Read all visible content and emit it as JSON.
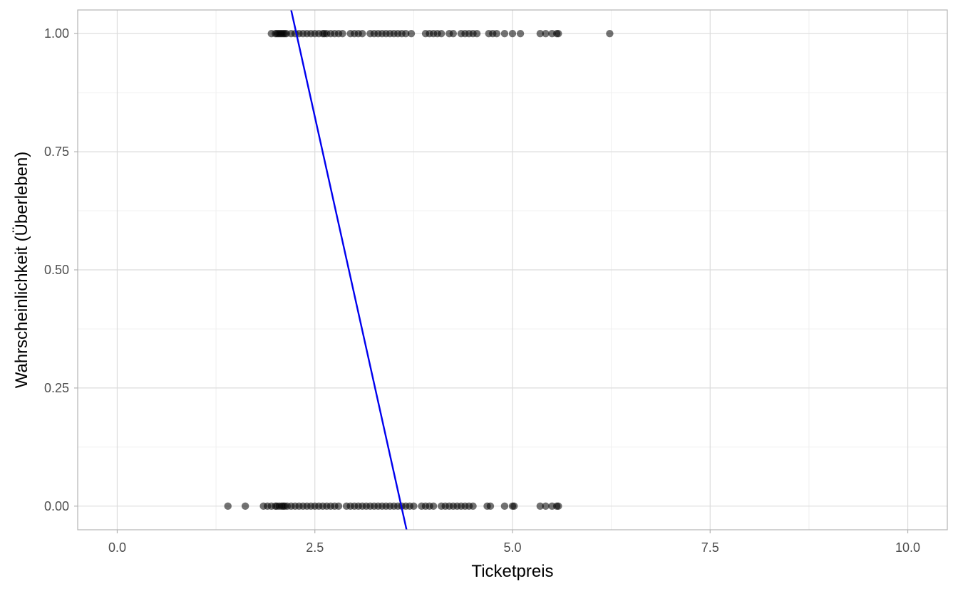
{
  "chart_data": {
    "type": "scatter",
    "title": "",
    "xlabel": "Ticketpreis",
    "ylabel": "Wahrscheinlichkeit (Überleben)",
    "xlim": [
      -0.5,
      10.5
    ],
    "ylim": [
      -0.05,
      1.05
    ],
    "x_ticks": [
      0.0,
      2.5,
      5.0,
      7.5,
      10.0
    ],
    "x_tick_labels": [
      "0.0",
      "2.5",
      "5.0",
      "7.5",
      "10.0"
    ],
    "y_ticks": [
      0.0,
      0.25,
      0.5,
      0.75,
      1.0
    ],
    "y_tick_labels": [
      "0.00",
      "0.25",
      "0.50",
      "0.75",
      "1.00"
    ],
    "grid": true,
    "point_color": "#000000",
    "point_opacity": 0.55,
    "line_color": "#0000ee",
    "series": [
      {
        "name": "",
        "kind": "points",
        "y": 1,
        "x": [
          1.95,
          2.0,
          2.02,
          2.04,
          2.06,
          2.08,
          2.1,
          2.12,
          2.14,
          2.2,
          2.25,
          2.3,
          2.35,
          2.4,
          2.45,
          2.5,
          2.55,
          2.6,
          2.62,
          2.65,
          2.7,
          2.75,
          2.8,
          2.85,
          2.95,
          3.0,
          3.05,
          3.1,
          3.2,
          3.25,
          3.3,
          3.35,
          3.4,
          3.45,
          3.5,
          3.55,
          3.6,
          3.65,
          3.72,
          3.9,
          3.95,
          4.0,
          4.05,
          4.1,
          4.2,
          4.25,
          4.35,
          4.4,
          4.45,
          4.5,
          4.55,
          4.7,
          4.75,
          4.8,
          4.9,
          5.0,
          5.1,
          5.35,
          5.42,
          5.5,
          5.56,
          5.58,
          6.23
        ]
      },
      {
        "name": "",
        "kind": "points",
        "y": 0,
        "x": [
          1.4,
          1.62,
          1.85,
          1.9,
          1.95,
          2.0,
          2.02,
          2.05,
          2.08,
          2.1,
          2.12,
          2.15,
          2.2,
          2.25,
          2.3,
          2.35,
          2.4,
          2.45,
          2.5,
          2.55,
          2.6,
          2.65,
          2.7,
          2.75,
          2.8,
          2.9,
          2.95,
          3.0,
          3.05,
          3.1,
          3.15,
          3.2,
          3.25,
          3.3,
          3.35,
          3.4,
          3.45,
          3.5,
          3.55,
          3.6,
          3.65,
          3.7,
          3.75,
          3.85,
          3.9,
          3.95,
          4.0,
          4.1,
          4.15,
          4.2,
          4.25,
          4.3,
          4.35,
          4.4,
          4.45,
          4.5,
          4.68,
          4.72,
          4.9,
          5.0,
          5.02,
          5.35,
          5.42,
          5.5,
          5.56,
          5.58
        ]
      },
      {
        "name": "",
        "kind": "line",
        "x": [
          2.2,
          3.66
        ],
        "y": [
          1.05,
          -0.05
        ]
      }
    ]
  }
}
